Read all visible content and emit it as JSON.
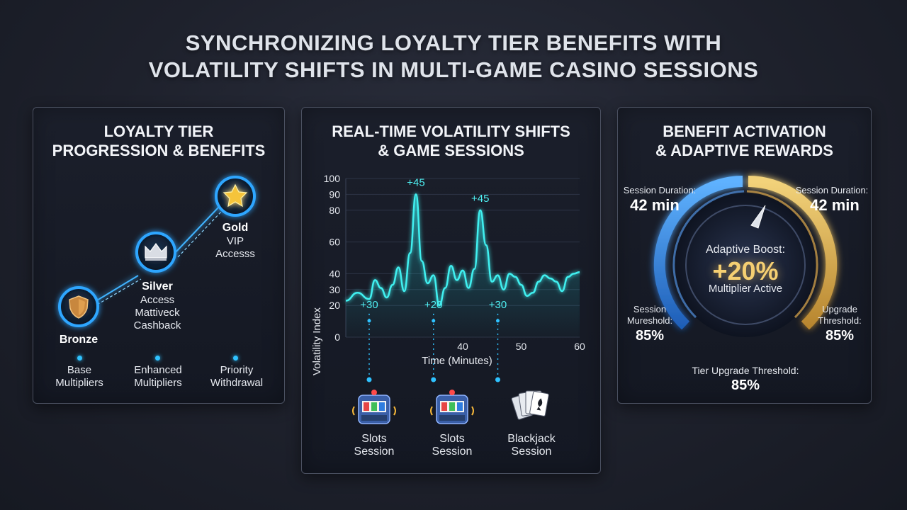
{
  "header": {
    "title_line1": "SYNCHRONIZING LOYALTY TIER BENEFITS WITH",
    "title_line2": "VOLATILITY SHIFTS IN MULTI-GAME CASINO SESSIONS"
  },
  "panel_left": {
    "title_line1": "LOYALTY TIER",
    "title_line2": "PROGRESSION & BENEFITS",
    "tiers": [
      {
        "name": "Bronze",
        "icon": "shield-icon",
        "details": []
      },
      {
        "name": "Silver",
        "icon": "crown-icon",
        "details": [
          "Access",
          "Mattiveck",
          "Cashback"
        ]
      },
      {
        "name": "Gold",
        "icon": "star-icon",
        "details": [
          "VIP",
          "Accesss"
        ]
      }
    ],
    "benefits": [
      {
        "line1": "Base",
        "line2": "Multipliers"
      },
      {
        "line1": "Enhanced",
        "line2": "Multipliers"
      },
      {
        "line1": "Priority",
        "line2": "Withdrawal"
      }
    ]
  },
  "panel_middle": {
    "title_line1": "REAL-TIME VOLATILITY SHIFTS",
    "title_line2": "& GAME SESSIONS",
    "sessions": [
      {
        "line1": "Slots",
        "line2": "Session",
        "icon": "slot-machine-icon"
      },
      {
        "line1": "Slots",
        "line2": "Session",
        "icon": "slot-machine-icon"
      },
      {
        "line1": "Blackjack",
        "line2": "Session",
        "icon": "playing-cards-icon"
      }
    ]
  },
  "chart_data": {
    "type": "line",
    "xlabel": "Time (Minutes)",
    "ylabel": "Volatility Index",
    "xlim": [
      20,
      60
    ],
    "ylim": [
      0,
      100
    ],
    "x_ticks": [
      "40",
      "50",
      "60"
    ],
    "y_ticks": [
      "0",
      "20",
      "30",
      "40",
      "60",
      "80",
      "90",
      "100"
    ],
    "series": [
      {
        "x": [
          20,
          22,
          24,
          25,
          26,
          27,
          28,
          29,
          30,
          31,
          32,
          33,
          34,
          35,
          36,
          37,
          38,
          39,
          40,
          41,
          42,
          43,
          44,
          45,
          46,
          47,
          48,
          49,
          50,
          51,
          52,
          53,
          54,
          55,
          56,
          57,
          58,
          59,
          60
        ],
        "y": [
          23,
          28,
          24,
          36,
          31,
          25,
          33,
          44,
          29,
          53,
          90,
          48,
          34,
          39,
          20,
          31,
          45,
          36,
          42,
          31,
          43,
          80,
          58,
          35,
          39,
          30,
          40,
          38,
          33,
          26,
          28,
          35,
          39,
          37,
          35,
          29,
          38,
          40,
          41
        ]
      }
    ],
    "annotations": [
      {
        "text": "+45",
        "x": 32,
        "y": 90
      },
      {
        "text": "+45",
        "x": 43,
        "y": 80
      },
      {
        "text": "+30",
        "x": 24,
        "y": 13
      },
      {
        "text": "+20",
        "x": 35,
        "y": 13
      },
      {
        "text": "+30",
        "x": 46,
        "y": 13
      }
    ]
  },
  "panel_right": {
    "title_line1": "BENEFIT ACTIVATION",
    "title_line2": "& ADAPTIVE REWARDS",
    "left_top": {
      "label": "Session Duration:",
      "value": "42 min"
    },
    "right_top": {
      "label": "Session Duration:",
      "value": "42 min"
    },
    "left_bottom": {
      "line1": "Session",
      "line2": "Mureshold:",
      "value": "85%"
    },
    "right_bottom": {
      "line1": "Upgrade",
      "line2": "Threshold:",
      "value": "85%"
    },
    "gauge": {
      "heading": "Adaptive Boost:",
      "value": "+20%",
      "sub": "Multiplier Active"
    },
    "footer": {
      "label": "Tier Upgrade Threshold:",
      "value": "85%"
    },
    "colors": {
      "blue_arc": "#3b8fe0",
      "gold_arc": "#e2b85a"
    }
  }
}
